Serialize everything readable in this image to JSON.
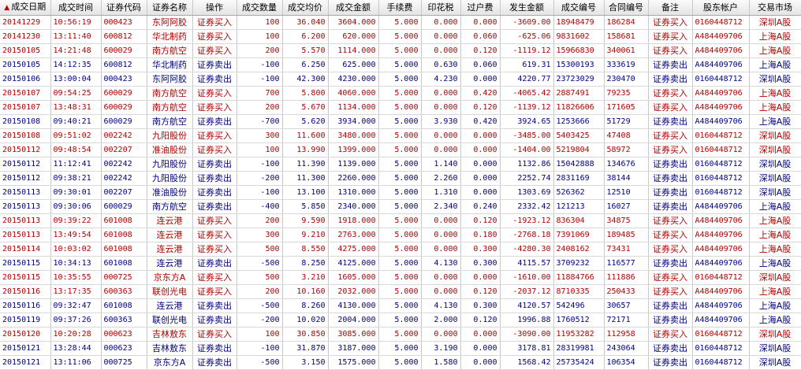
{
  "sort_icon": "▲",
  "columns": [
    "成交日期",
    "成交时间",
    "证券代码",
    "证券名称",
    "操作",
    "成交数量",
    "成交均价",
    "成交金额",
    "手续费",
    "印花税",
    "过户费",
    "发生金额",
    "成交编号",
    "合同编号",
    "备注",
    "股东帐户",
    "交易市场"
  ],
  "rows": [
    {
      "side": "buy",
      "cells": [
        "20141229",
        "10:56:19",
        "000423",
        "东阿阿胶",
        "证券买入",
        "100",
        "36.040",
        "3604.000",
        "5.000",
        "0.000",
        "0.000",
        "-3609.00",
        "18948479",
        "186284",
        "证券买入",
        "0160448712",
        "深圳A股"
      ]
    },
    {
      "side": "buy",
      "cells": [
        "20141230",
        "13:11:40",
        "600812",
        "华北制药",
        "证券买入",
        "100",
        "6.200",
        "620.000",
        "5.000",
        "0.000",
        "0.060",
        "-625.06",
        "9831602",
        "158681",
        "证券买入",
        "A484409706",
        "上海A股"
      ]
    },
    {
      "side": "buy",
      "cells": [
        "20150105",
        "14:21:48",
        "600029",
        "南方航空",
        "证券买入",
        "200",
        "5.570",
        "1114.000",
        "5.000",
        "0.000",
        "0.120",
        "-1119.12",
        "15966830",
        "340061",
        "证券买入",
        "A484409706",
        "上海A股"
      ]
    },
    {
      "side": "sell",
      "cells": [
        "20150105",
        "14:12:35",
        "600812",
        "华北制药",
        "证券卖出",
        "-100",
        "6.250",
        "625.000",
        "5.000",
        "0.630",
        "0.060",
        "619.31",
        "15300193",
        "333619",
        "证券卖出",
        "A484409706",
        "上海A股"
      ]
    },
    {
      "side": "sell",
      "cells": [
        "20150106",
        "13:00:04",
        "000423",
        "东阿阿胶",
        "证券卖出",
        "-100",
        "42.300",
        "4230.000",
        "5.000",
        "4.230",
        "0.000",
        "4220.77",
        "23723029",
        "230470",
        "证券卖出",
        "0160448712",
        "深圳A股"
      ]
    },
    {
      "side": "buy",
      "cells": [
        "20150107",
        "09:54:25",
        "600029",
        "南方航空",
        "证券买入",
        "700",
        "5.800",
        "4060.000",
        "5.000",
        "0.000",
        "0.420",
        "-4065.42",
        "2887491",
        "79235",
        "证券买入",
        "A484409706",
        "上海A股"
      ]
    },
    {
      "side": "buy",
      "cells": [
        "20150107",
        "13:48:31",
        "600029",
        "南方航空",
        "证券买入",
        "200",
        "5.670",
        "1134.000",
        "5.000",
        "0.000",
        "0.120",
        "-1139.12",
        "11826606",
        "171605",
        "证券买入",
        "A484409706",
        "上海A股"
      ]
    },
    {
      "side": "sell",
      "cells": [
        "20150108",
        "09:40:21",
        "600029",
        "南方航空",
        "证券卖出",
        "-700",
        "5.620",
        "3934.000",
        "5.000",
        "3.930",
        "0.420",
        "3924.65",
        "1253666",
        "51729",
        "证券卖出",
        "A484409706",
        "上海A股"
      ]
    },
    {
      "side": "buy",
      "cells": [
        "20150108",
        "09:51:02",
        "002242",
        "九阳股份",
        "证券买入",
        "300",
        "11.600",
        "3480.000",
        "5.000",
        "0.000",
        "0.000",
        "-3485.00",
        "5403425",
        "47408",
        "证券买入",
        "0160448712",
        "深圳A股"
      ]
    },
    {
      "side": "buy",
      "cells": [
        "20150112",
        "09:48:54",
        "002207",
        "准油股份",
        "证券买入",
        "100",
        "13.990",
        "1399.000",
        "5.000",
        "0.000",
        "0.000",
        "-1404.00",
        "5219804",
        "58972",
        "证券买入",
        "0160448712",
        "深圳A股"
      ]
    },
    {
      "side": "sell",
      "cells": [
        "20150112",
        "11:12:41",
        "002242",
        "九阳股份",
        "证券卖出",
        "-100",
        "11.390",
        "1139.000",
        "5.000",
        "1.140",
        "0.000",
        "1132.86",
        "15042888",
        "134676",
        "证券卖出",
        "0160448712",
        "深圳A股"
      ]
    },
    {
      "side": "sell",
      "cells": [
        "20150112",
        "09:38:21",
        "002242",
        "九阳股份",
        "证券卖出",
        "-200",
        "11.300",
        "2260.000",
        "5.000",
        "2.260",
        "0.000",
        "2252.74",
        "2831169",
        "38144",
        "证券卖出",
        "0160448712",
        "深圳A股"
      ]
    },
    {
      "side": "sell",
      "cells": [
        "20150113",
        "09:30:01",
        "002207",
        "准油股份",
        "证券卖出",
        "-100",
        "13.100",
        "1310.000",
        "5.000",
        "1.310",
        "0.000",
        "1303.69",
        "526362",
        "12510",
        "证券卖出",
        "0160448712",
        "深圳A股"
      ]
    },
    {
      "side": "sell",
      "cells": [
        "20150113",
        "09:30:06",
        "600029",
        "南方航空",
        "证券卖出",
        "-400",
        "5.850",
        "2340.000",
        "5.000",
        "2.340",
        "0.240",
        "2332.42",
        "121213",
        "16027",
        "证券卖出",
        "A484409706",
        "上海A股"
      ]
    },
    {
      "side": "buy",
      "cells": [
        "20150113",
        "09:39:22",
        "601008",
        "连云港",
        "证券买入",
        "200",
        "9.590",
        "1918.000",
        "5.000",
        "0.000",
        "0.120",
        "-1923.12",
        "836304",
        "34875",
        "证券买入",
        "A484409706",
        "上海A股"
      ]
    },
    {
      "side": "buy",
      "cells": [
        "20150113",
        "13:49:54",
        "601008",
        "连云港",
        "证券买入",
        "300",
        "9.210",
        "2763.000",
        "5.000",
        "0.000",
        "0.180",
        "-2768.18",
        "7391069",
        "189485",
        "证券买入",
        "A484409706",
        "上海A股"
      ]
    },
    {
      "side": "buy",
      "cells": [
        "20150114",
        "10:03:02",
        "601008",
        "连云港",
        "证券买入",
        "500",
        "8.550",
        "4275.000",
        "5.000",
        "0.000",
        "0.300",
        "-4280.30",
        "2408162",
        "73431",
        "证券买入",
        "A484409706",
        "上海A股"
      ]
    },
    {
      "side": "sell",
      "cells": [
        "20150115",
        "10:34:13",
        "601008",
        "连云港",
        "证券卖出",
        "-500",
        "8.250",
        "4125.000",
        "5.000",
        "4.130",
        "0.300",
        "4115.57",
        "3709232",
        "116577",
        "证券卖出",
        "A484409706",
        "上海A股"
      ]
    },
    {
      "side": "buy",
      "cells": [
        "20150115",
        "10:35:55",
        "000725",
        "京东方A",
        "证券买入",
        "500",
        "3.210",
        "1605.000",
        "5.000",
        "0.000",
        "0.000",
        "-1610.00",
        "11884766",
        "111886",
        "证券买入",
        "0160448712",
        "深圳A股"
      ]
    },
    {
      "side": "buy",
      "cells": [
        "20150116",
        "13:17:35",
        "600363",
        "联创光电",
        "证券买入",
        "200",
        "10.160",
        "2032.000",
        "5.000",
        "0.000",
        "0.120",
        "-2037.12",
        "8710335",
        "250433",
        "证券买入",
        "A484409706",
        "上海A股"
      ]
    },
    {
      "side": "sell",
      "cells": [
        "20150116",
        "09:32:47",
        "601008",
        "连云港",
        "证券卖出",
        "-500",
        "8.260",
        "4130.000",
        "5.000",
        "4.130",
        "0.300",
        "4120.57",
        "542496",
        "30657",
        "证券卖出",
        "A484409706",
        "上海A股"
      ]
    },
    {
      "side": "sell",
      "cells": [
        "20150119",
        "09:37:26",
        "600363",
        "联创光电",
        "证券卖出",
        "-200",
        "10.020",
        "2004.000",
        "5.000",
        "2.000",
        "0.120",
        "1996.88",
        "1760512",
        "72171",
        "证券卖出",
        "A484409706",
        "上海A股"
      ]
    },
    {
      "side": "buy",
      "cells": [
        "20150120",
        "10:20:28",
        "000623",
        "吉林敖东",
        "证券买入",
        "100",
        "30.850",
        "3085.000",
        "5.000",
        "0.000",
        "0.000",
        "-3090.00",
        "11953282",
        "112958",
        "证券买入",
        "0160448712",
        "深圳A股"
      ]
    },
    {
      "side": "sell",
      "cells": [
        "20150121",
        "13:28:44",
        "000623",
        "吉林敖东",
        "证券卖出",
        "-100",
        "31.870",
        "3187.000",
        "5.000",
        "3.190",
        "0.000",
        "3178.81",
        "28319981",
        "243064",
        "证券卖出",
        "0160448712",
        "深圳A股"
      ]
    },
    {
      "side": "sell",
      "cells": [
        "20150121",
        "13:11:06",
        "000725",
        "京东方A",
        "证券卖出",
        "-500",
        "3.150",
        "1575.000",
        "5.000",
        "1.580",
        "0.000",
        "1568.42",
        "25735424",
        "106354",
        "证券卖出",
        "0160448712",
        "深圳A股"
      ]
    }
  ]
}
